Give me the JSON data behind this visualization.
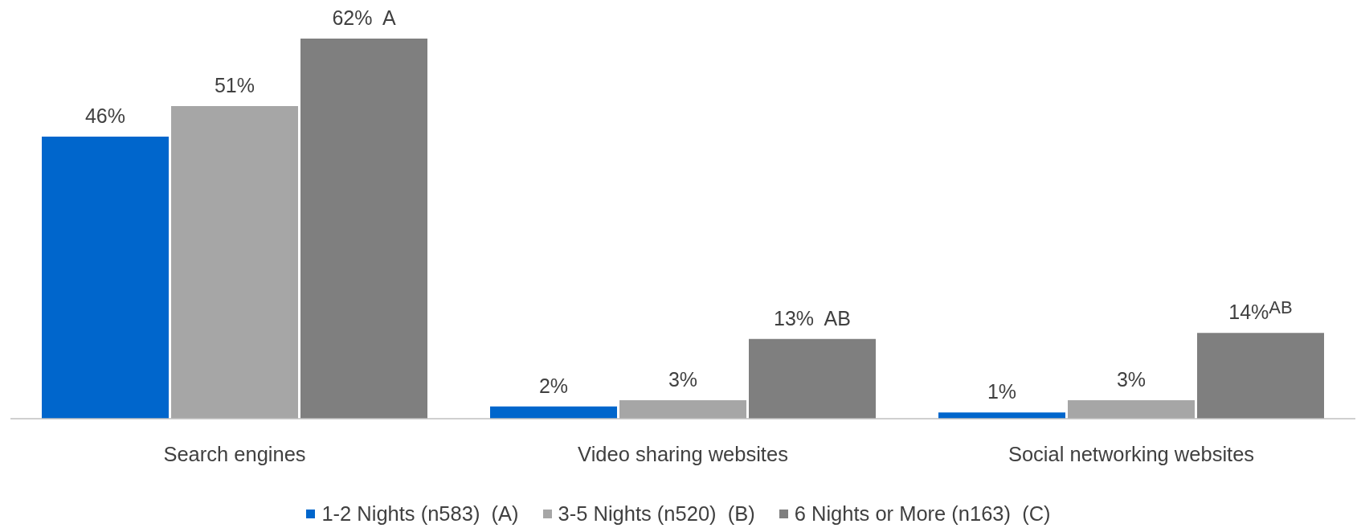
{
  "chart_data": {
    "type": "bar",
    "categories": [
      "Search engines",
      "Video sharing websites",
      "Social networking websites"
    ],
    "series": [
      {
        "name": "1-2 Nights (n583)  (A)",
        "color": "#0066cc",
        "values": [
          46,
          2,
          1
        ],
        "value_labels": [
          "46%",
          "2%",
          "1%"
        ]
      },
      {
        "name": "3-5 Nights (n520)  (B)",
        "color": "#a6a6a6",
        "values": [
          51,
          3,
          3
        ],
        "value_labels": [
          "51%",
          "3%",
          "3%"
        ]
      },
      {
        "name": "6 Nights or More (n163)  (C)",
        "color": "#7f7f7f",
        "values": [
          62,
          13,
          14
        ],
        "value_labels": [
          "62%  A",
          "13%  AB",
          "14%$^{AB}$"
        ]
      }
    ],
    "legend": "bottom"
  }
}
